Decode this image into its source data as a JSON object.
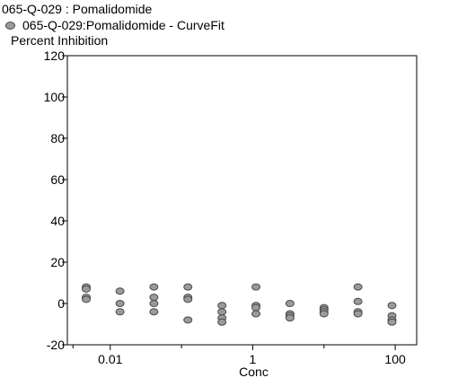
{
  "header": {
    "title": "065-Q-029  : Pomalidomide",
    "legend_label": "065-Q-029:Pomalidomide - CurveFit",
    "y_axis_title": "Percent Inhibition"
  },
  "chart_data": {
    "type": "scatter",
    "x_scale": "log",
    "xlabel": "Conc",
    "ylabel": "Percent Inhibition",
    "xlim": [
      0.0025,
      200
    ],
    "ylim": [
      -20,
      120
    ],
    "x_ticks": [
      0.01,
      1,
      100
    ],
    "x_tick_labels": [
      "0.01",
      "1",
      "100"
    ],
    "y_ticks": [
      -20,
      0,
      20,
      40,
      60,
      80,
      100,
      120
    ],
    "y_tick_labels": [
      "-20",
      "0",
      "20",
      "40",
      "60",
      "80",
      "100",
      "120"
    ],
    "grid": false,
    "marker_fill": "#9a9a9a",
    "marker_edge": "#4a4a4a",
    "series": [
      {
        "name": "065-Q-029:Pomalidomide - CurveFit",
        "points": [
          {
            "x": 0.0046,
            "y": 8
          },
          {
            "x": 0.0046,
            "y": 7
          },
          {
            "x": 0.0046,
            "y": 3
          },
          {
            "x": 0.0046,
            "y": 2
          },
          {
            "x": 0.0137,
            "y": 6
          },
          {
            "x": 0.0137,
            "y": 0
          },
          {
            "x": 0.0137,
            "y": -4
          },
          {
            "x": 0.041,
            "y": 8
          },
          {
            "x": 0.041,
            "y": 3
          },
          {
            "x": 0.041,
            "y": 0
          },
          {
            "x": 0.041,
            "y": -4
          },
          {
            "x": 0.123,
            "y": 8
          },
          {
            "x": 0.123,
            "y": 3
          },
          {
            "x": 0.123,
            "y": 2
          },
          {
            "x": 0.123,
            "y": -8
          },
          {
            "x": 0.37,
            "y": -1
          },
          {
            "x": 0.37,
            "y": -4
          },
          {
            "x": 0.37,
            "y": -7
          },
          {
            "x": 0.37,
            "y": -9
          },
          {
            "x": 1.11,
            "y": 8
          },
          {
            "x": 1.11,
            "y": -1
          },
          {
            "x": 1.11,
            "y": -2
          },
          {
            "x": 1.11,
            "y": -5
          },
          {
            "x": 3.33,
            "y": 0
          },
          {
            "x": 3.33,
            "y": -5
          },
          {
            "x": 3.33,
            "y": -6
          },
          {
            "x": 3.33,
            "y": -7
          },
          {
            "x": 10,
            "y": -2
          },
          {
            "x": 10,
            "y": -3
          },
          {
            "x": 10,
            "y": -4
          },
          {
            "x": 10,
            "y": -5
          },
          {
            "x": 30,
            "y": 8
          },
          {
            "x": 30,
            "y": 1
          },
          {
            "x": 30,
            "y": -4
          },
          {
            "x": 30,
            "y": -5
          },
          {
            "x": 90,
            "y": -1
          },
          {
            "x": 90,
            "y": -6
          },
          {
            "x": 90,
            "y": -8
          },
          {
            "x": 90,
            "y": -9
          }
        ]
      }
    ]
  }
}
